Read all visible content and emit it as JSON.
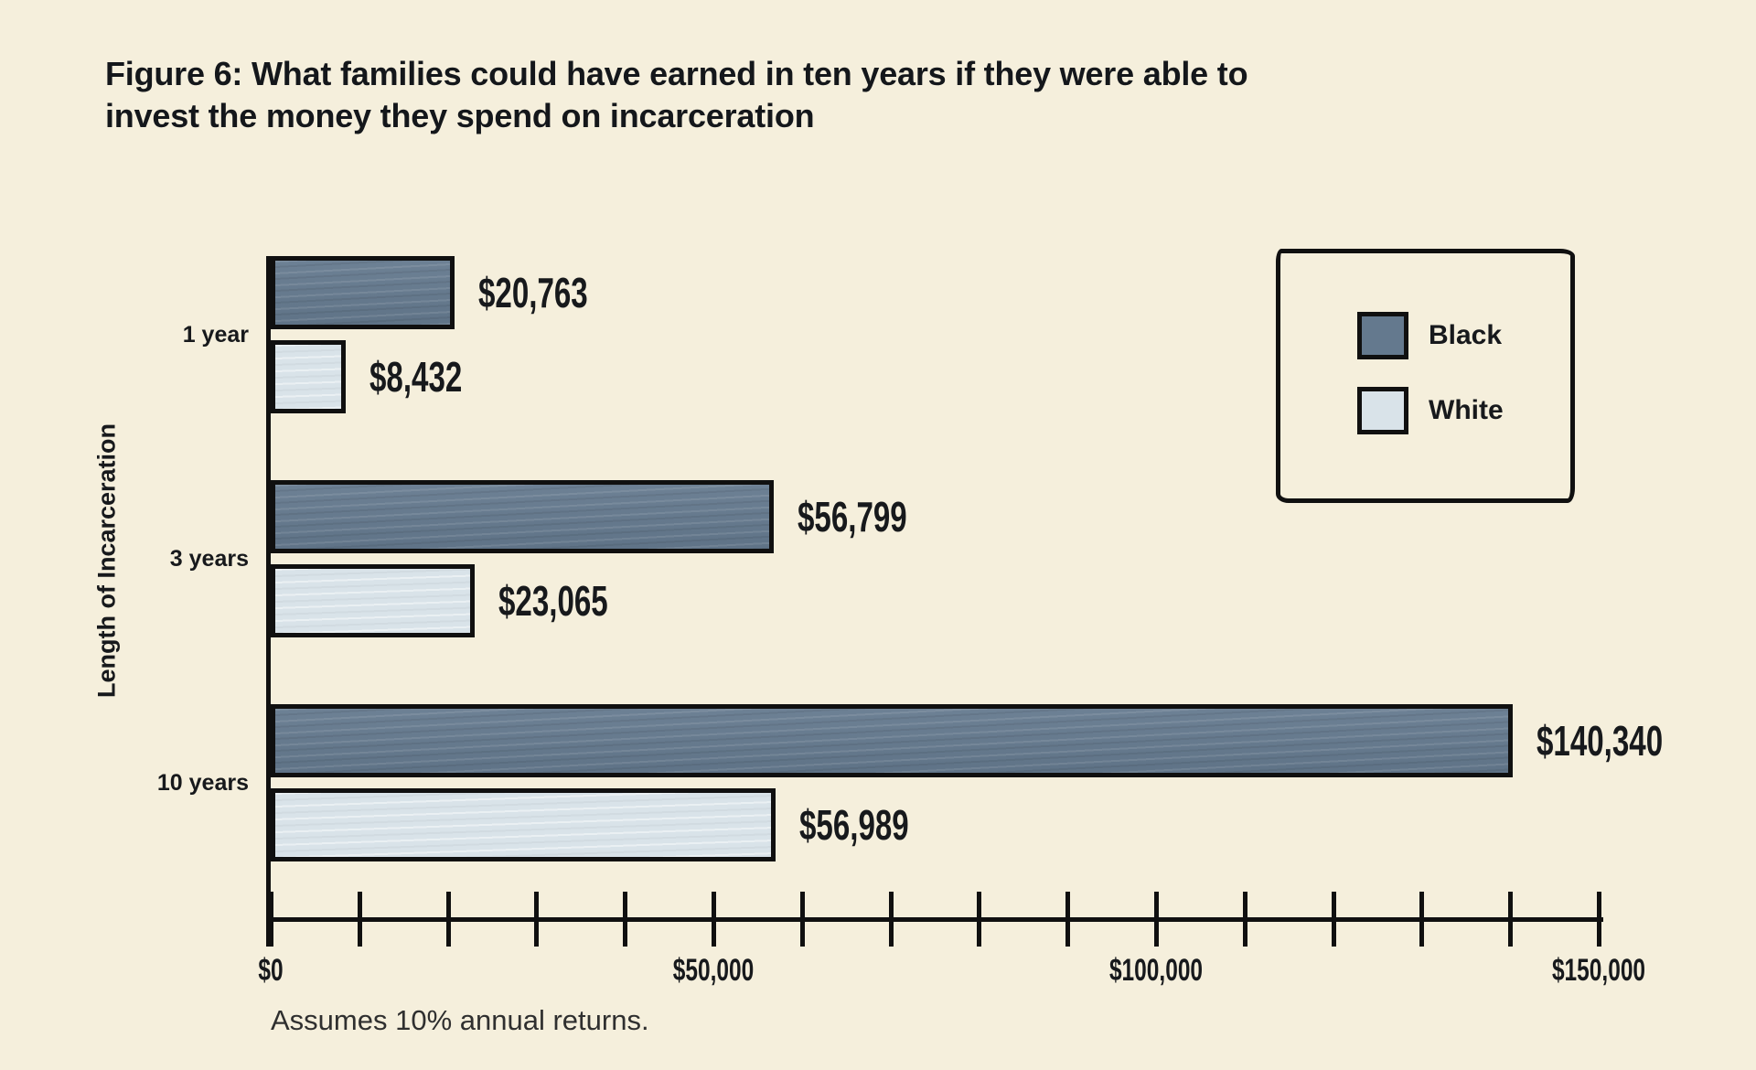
{
  "figure": {
    "title_lines": [
      "Figure 6: What families could have earned in ten years if they were able to",
      "invest the money they spend on incarceration"
    ],
    "background_color": "#f5efdc",
    "axis_color": "#101010",
    "text_color": "#17191c"
  },
  "chart_data": {
    "type": "bar",
    "orientation": "horizontal",
    "title": "Figure 6: What families could have earned in ten years if they were able to invest the money they spend on incarceration",
    "xlabel": "",
    "ylabel": "Length of Incarceration",
    "categories": [
      "1 year",
      "3 years",
      "10 years"
    ],
    "series": [
      {
        "name": "Black",
        "color": "#64798e",
        "values": [
          20763,
          56799,
          140340
        ],
        "labels": [
          "$20,763",
          "$56,799",
          "$140,340"
        ]
      },
      {
        "name": "White",
        "color": "#d9e3e9",
        "values": [
          8432,
          23065,
          56989
        ],
        "labels": [
          "$8,432",
          "$23,065",
          "$56,989"
        ]
      }
    ],
    "x_axis": {
      "max": 150000,
      "minor_tick_interval": 10000,
      "tick_values": [
        0,
        50000,
        100000,
        150000
      ],
      "ticks": [
        "$0",
        "$50,000",
        "$100,000",
        "$150,000"
      ]
    },
    "legend": {
      "position": "top-right",
      "entries": [
        "Black",
        "White"
      ]
    },
    "grid": false,
    "note": "Assumes 10% annual returns."
  }
}
